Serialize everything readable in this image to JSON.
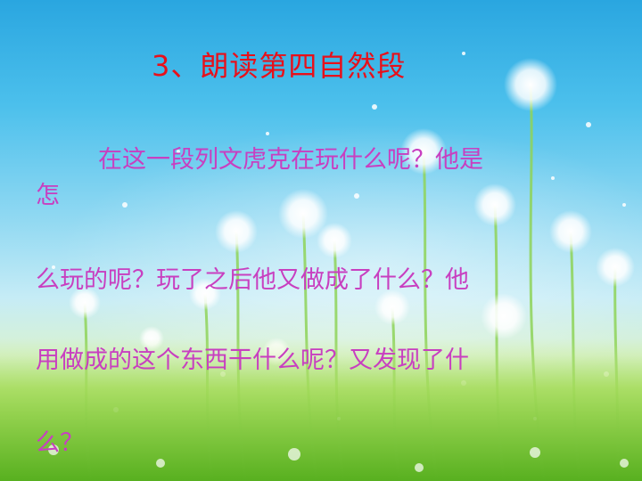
{
  "slide": {
    "title": "3、朗读第四自然段",
    "paragraph_lines": [
      "在这一段列文虎克在玩什么呢？他是",
      "怎",
      "么玩的呢？玩了之后他又做成了什么？他",
      "用做成的这个东西干什么呢？又发现了什",
      "么？"
    ]
  },
  "colors": {
    "title": "#e8101a",
    "body_text": "#c83fc0",
    "sky_top": "#2aa6e0",
    "grass": "#6cbf2e"
  }
}
